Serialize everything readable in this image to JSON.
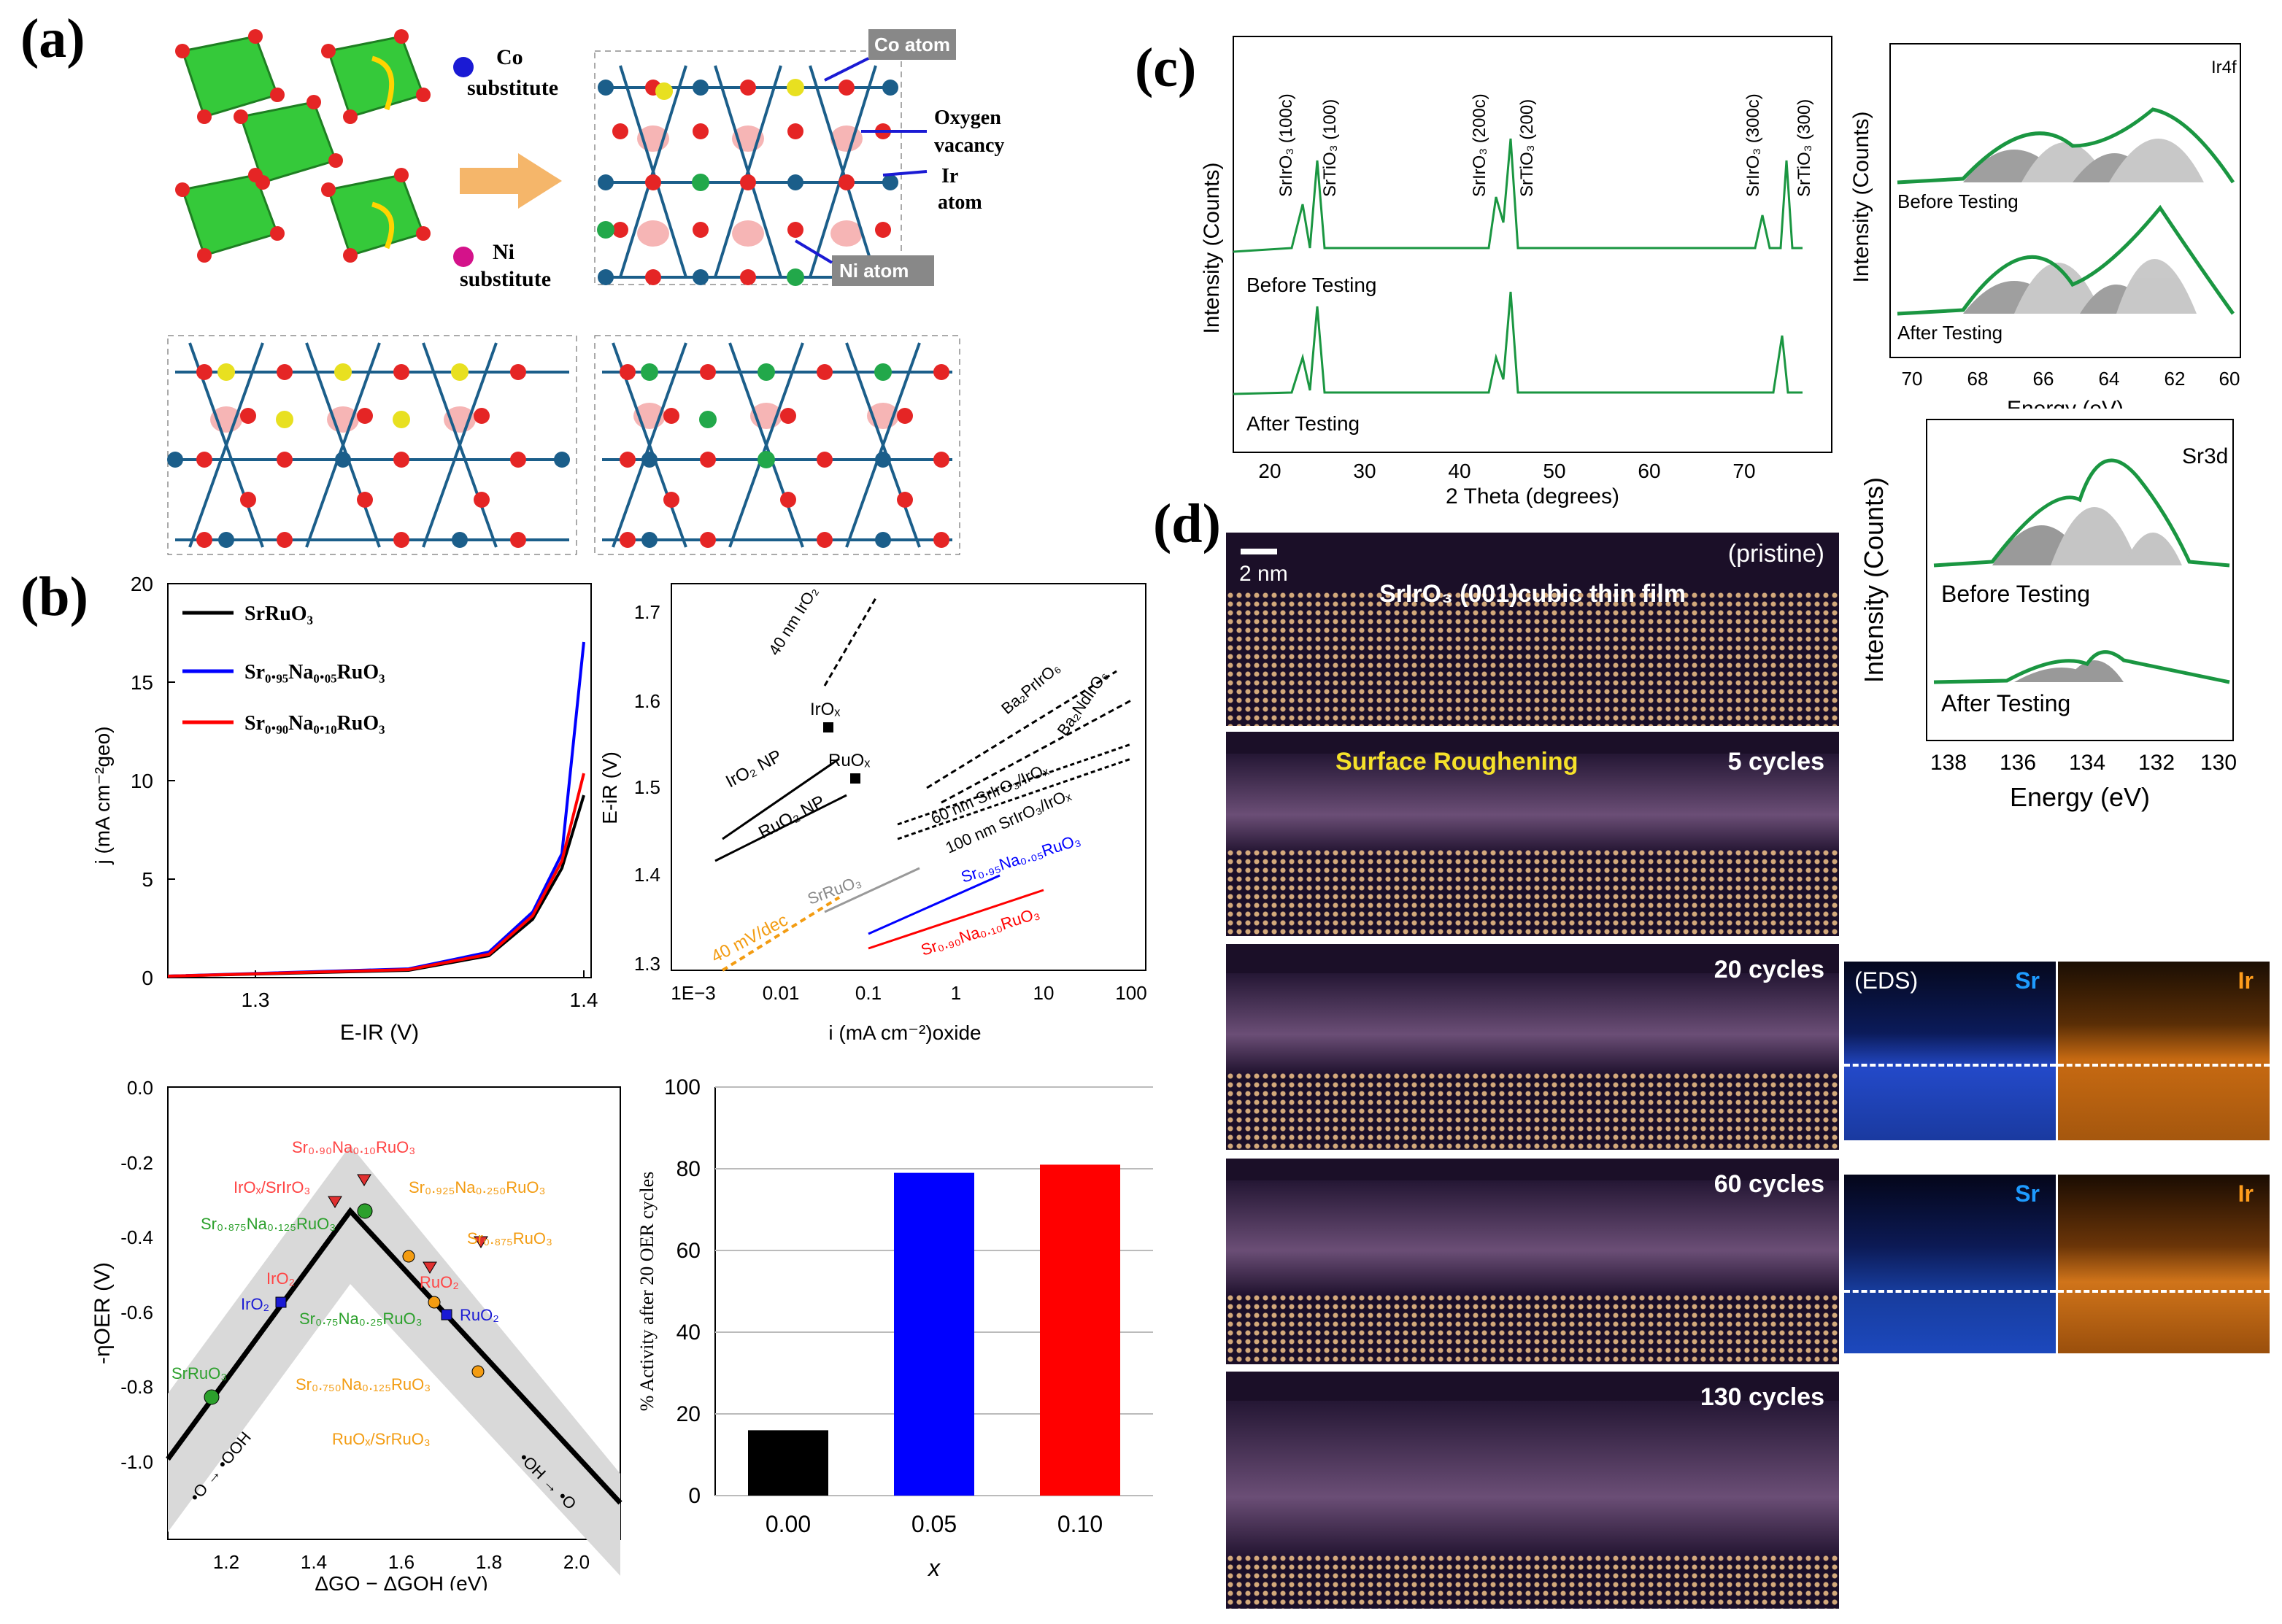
{
  "labels": {
    "a": "(a)",
    "b": "(b)",
    "c": "(c)",
    "d": "(d)"
  },
  "panel_a": {
    "co_sub": "Co",
    "co_sub2": "substitute",
    "ni_sub": "Ni",
    "ni_sub2": "substitute",
    "co_atom": "Co atom",
    "ni_atom": "Ni atom",
    "oxy1": "Oxygen",
    "oxy2": "vacancy",
    "ir1": "Ir",
    "ir2": "atom"
  },
  "panel_b1": {
    "ylabel": "j (mA cm⁻²geo)",
    "xlabel": "E-IR (V)",
    "yticks": [
      "0",
      "5",
      "10",
      "15",
      "20"
    ],
    "xticks": [
      "1.3",
      "1.4"
    ],
    "legend": [
      "SrRuO₃",
      "Sr₀.₉₅Na₀.₀₅RuO₃",
      "Sr₀.₉₀Na₀.₁₀RuO₃"
    ]
  },
  "panel_b2": {
    "ylabel": "E-iR (V)",
    "xlabel": "i (mA cm⁻²)oxide",
    "yticks": [
      "1.3",
      "1.4",
      "1.5",
      "1.6",
      "1.7"
    ],
    "xticks": [
      "1E−3",
      "0.01",
      "0.1",
      "1",
      "10",
      "100"
    ],
    "annot": {
      "irO2_40": "40 nm IrO₂",
      "irOx": "IrOₓ",
      "ruOx": "RuOₓ",
      "irO2np": "IrO₂ NP",
      "ruO2np": "RuO₂ NP",
      "ba2pr": "Ba₂PrIrO₆",
      "ba2nd": "Ba₂NdIrO₆",
      "sr60": "60 nm SrIrO₃/IrOₓ",
      "sr100": "100 nm SrIrO₃/IrOₓ",
      "srruo3": "SrRuO₃",
      "na05": "Sr₀.₉₅Na₀.₀₅RuO₃",
      "na10": "Sr₀.₉₀Na₀.₁₀RuO₃",
      "slope": "40 mV/dec"
    }
  },
  "panel_b3": {
    "ylabel": "-ηOER (V)",
    "xlabel": "ΔGO − ΔGOH (eV)",
    "yticks": [
      "0.0",
      "-0.2",
      "-0.4",
      "-0.6",
      "-0.8",
      "-1.0"
    ],
    "xticks": [
      "1.2",
      "1.4",
      "1.6",
      "1.8",
      "2.0"
    ],
    "annot": {
      "na10": "Sr₀.₉₀Na₀.₁₀RuO₃",
      "irox": "IrOₓ/SrIrO₃",
      "na125": "Sr₀.₈₇₅Na₀.₁₂₅RuO₃",
      "na250": "Sr₀.₉₂₅Na₀.₂₅₀RuO₃",
      "sr875": "Sr₀.₈₇₅RuO₃",
      "iro2a": "IrO₂",
      "iro2b": "IrO₂",
      "ruo2a": "RuO₂",
      "ruo2b": "RuO₂",
      "na25": "Sr₀.₇₅Na₀.₂₅RuO₃",
      "srruo3": "SrRuO₃",
      "na750": "Sr₀.₇₅₀Na₀.₁₂₅RuO₃",
      "ruox": "RuOₓ/SrRuO₃",
      "ooh": "•O → •OOH",
      "oh": "•OH → •O"
    }
  },
  "chart_data": [
    {
      "type": "bar",
      "title": "",
      "categories": [
        "0.00",
        "0.05",
        "0.10"
      ],
      "values": [
        16,
        79,
        81
      ],
      "colors": [
        "#000000",
        "#0000ff",
        "#ff0000"
      ],
      "xlabel": "x",
      "ylabel": "% Activity after 20 OER cycles",
      "ylim": [
        0,
        100
      ],
      "yticks": [
        "0",
        "20",
        "40",
        "60",
        "80",
        "100"
      ]
    }
  ],
  "panel_c_xrd": {
    "ylabel": "Intensity (Counts)",
    "xlabel": "2 Theta (degrees)",
    "xticks": [
      "20",
      "30",
      "40",
      "50",
      "60",
      "70"
    ],
    "peaks": [
      "SrIrO₃ (100c)",
      "SrTiO₃ (100)",
      "SrIrO₃ (200c)",
      "SrTiO₃ (200)",
      "SrIrO₃ (300c)",
      "SrTiO₃ (300)"
    ],
    "before": "Before Testing",
    "after": "After Testing"
  },
  "panel_c_ir4f": {
    "tag": "Ir4f",
    "ylabel": "Intensity (Counts)",
    "xlabel": "Energy (eV)",
    "xticks": [
      "70",
      "68",
      "66",
      "64",
      "62",
      "60"
    ],
    "before": "Before Testing",
    "after": "After Testing"
  },
  "panel_c_sr3d": {
    "tag": "Sr3d",
    "ylabel": "Intensity (Counts)",
    "xlabel": "Energy (eV)",
    "xticks": [
      "138",
      "136",
      "134",
      "132",
      "130"
    ],
    "before": "Before Testing",
    "after": "After Testing"
  },
  "panel_d": {
    "scale": "2 nm",
    "pristine": "(pristine)",
    "film": "SrIrO₃ (001)cubic thin film",
    "rough": "Surface Roughening",
    "c5": "5 cycles",
    "c20": "20 cycles",
    "c60": "60 cycles",
    "c130": "130 cycles",
    "eds": "(EDS)",
    "sr": "Sr",
    "ir": "Ir"
  },
  "colors": {
    "green": "#1a9641",
    "blue": "#0000ff",
    "red": "#ff0000",
    "orange": "#f39c12",
    "gray": "#bdbdbd"
  }
}
